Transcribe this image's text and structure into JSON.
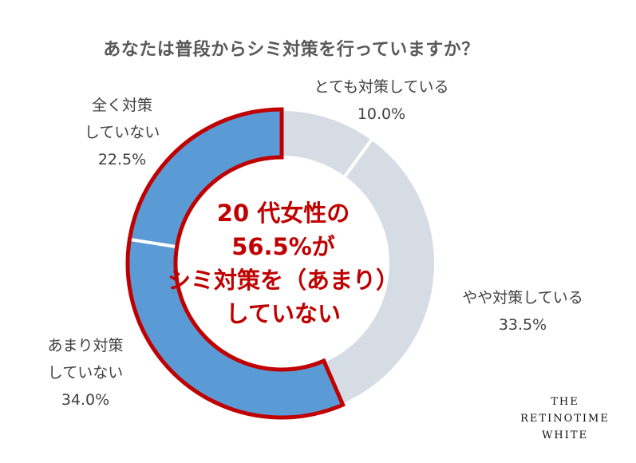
{
  "colors": {
    "highlight_fill": "#5b9bd5",
    "highlight_outline": "#c00000",
    "neutral_fill": "#d6dce4",
    "center_text": "#c00000"
  },
  "chart_data": {
    "type": "pie",
    "style": "donut",
    "title": "あなたは普段からシミ対策を行っていますか？",
    "slices": [
      {
        "label": "とても対策している",
        "value": 10.0,
        "display": "10.0%",
        "highlighted": false
      },
      {
        "label": "やや対策している",
        "value": 33.5,
        "display": "33.5%",
        "highlighted": false
      },
      {
        "label": "あまり対策していない",
        "label_lines": [
          "あまり対策",
          "していない"
        ],
        "value": 34.0,
        "display": "34.0%",
        "highlighted": true
      },
      {
        "label": "全く対策していない",
        "label_lines": [
          "全く対策",
          "していない"
        ],
        "value": 22.5,
        "display": "22.5%",
        "highlighted": true
      }
    ],
    "center_text": [
      "20 代女性の",
      "56.5%が",
      "シミ対策を（あまり）",
      "していない"
    ]
  },
  "brand": [
    "THE",
    "RETINOTIME",
    "WHITE"
  ]
}
